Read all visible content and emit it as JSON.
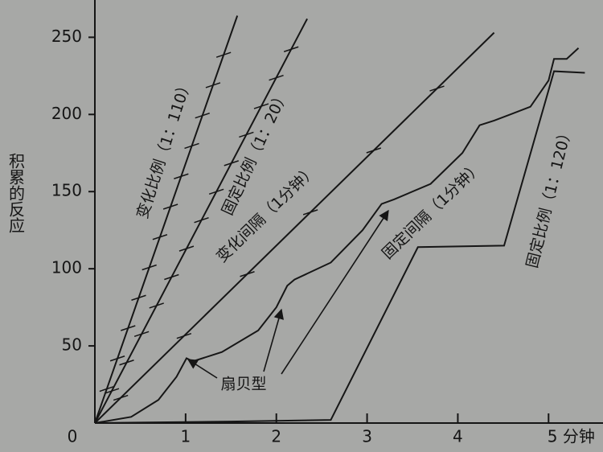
{
  "chart_data": {
    "type": "line",
    "ylabel": "积累的反应",
    "annotation": "扇贝型",
    "xlim": [
      0,
      5.6
    ],
    "ylim": [
      0,
      270
    ],
    "xticks": [
      0,
      1,
      2,
      3,
      4,
      {
        "value": 5,
        "label": "5 分钟"
      }
    ],
    "yticks": [
      50,
      100,
      150,
      200,
      250
    ],
    "series": [
      {
        "name": "变化比例（1：110）",
        "color": "#161616",
        "x": [
          0,
          1.57
        ],
        "values": [
          0,
          264
        ]
      },
      {
        "name": "固定比例（1：20）",
        "color": "#161616",
        "x": [
          0,
          2.34
        ],
        "values": [
          0,
          262
        ]
      },
      {
        "name": "变化间隔（1分钟）",
        "color": "#161616",
        "x": [
          0,
          4.4
        ],
        "values": [
          0,
          253
        ]
      },
      {
        "name": "固定间隔（1分钟）",
        "color": "#161616",
        "x": [
          0,
          0.4,
          0.7,
          0.9,
          1.01,
          1.08,
          1.4,
          1.8,
          2.0,
          2.12,
          2.2,
          2.6,
          2.95,
          3.16,
          3.3,
          3.7,
          4.05,
          4.24,
          4.4,
          4.8,
          5.0,
          5.06,
          5.2,
          5.33
        ],
        "values": [
          0,
          4,
          15,
          30,
          42,
          40,
          46,
          60,
          75,
          89,
          93,
          104,
          125,
          142,
          145,
          155,
          175,
          193,
          196,
          205,
          222,
          236,
          236,
          243
        ]
      },
      {
        "name": "固定比例（1：120）",
        "color": "#161616",
        "x": [
          0,
          1.5,
          2.6,
          3.56,
          4.51,
          5.06,
          5.4
        ],
        "values": [
          0,
          1,
          2,
          114,
          115,
          228,
          227
        ]
      }
    ]
  }
}
